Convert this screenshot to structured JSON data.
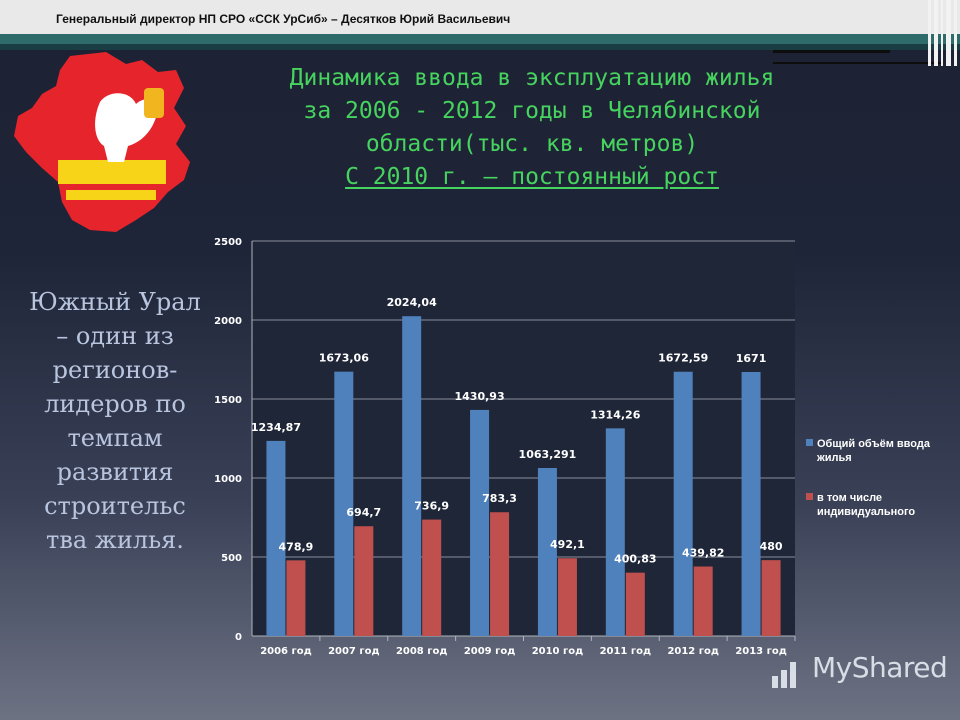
{
  "header": {
    "text": "Генеральный директор НП СРО «ССК УрСиб» – Десятков Юрий Васильевич"
  },
  "slide": {
    "title_lines": [
      "Динамика ввода в эксплуатацию жилья",
      "за 2006 - 2012 годы в Челябинской",
      "области(тыс. кв. метров)"
    ],
    "subtitle": "С 2010 г. – постоянный рост",
    "side_text": "Южный Урал – один из регионов-лидеров по темпам развития строительс тва жилья."
  },
  "watermark": {
    "text": "MyShared"
  },
  "colors": {
    "series_total": "#4f81bd",
    "series_individual": "#c0504d",
    "title": "#46d35e",
    "accent_teal": "#2e6b6b"
  },
  "chart_data": {
    "type": "bar",
    "categories": [
      "2006 год",
      "2007 год",
      "2008 год",
      "2009 год",
      "2010 год",
      "2011 год",
      "2012 год",
      "2013 год"
    ],
    "series": [
      {
        "name": "Общий объём ввода жилья",
        "values": [
          1234.87,
          1673.06,
          2024.04,
          1430.93,
          1063.291,
          1314.26,
          1672.59,
          1671
        ],
        "labels": [
          "1234,87",
          "1673,06",
          "2024,04",
          "1430,93",
          "1063,291",
          "1314,26",
          "1672,59",
          "1671"
        ],
        "color": "#4f81bd"
      },
      {
        "name": "в том числе индивидуального",
        "values": [
          478.9,
          694.7,
          736.9,
          783.3,
          492.1,
          400.83,
          439.82,
          480
        ],
        "labels": [
          "478,9",
          "694,7",
          "736,9",
          "783,3",
          "492,1",
          "400,83",
          "439,82",
          "480"
        ],
        "color": "#c0504d"
      }
    ],
    "ylim": [
      0,
      2500
    ],
    "yticks": [
      0,
      500,
      1000,
      1500,
      2000,
      2500
    ],
    "grid": true,
    "legend": "right"
  }
}
